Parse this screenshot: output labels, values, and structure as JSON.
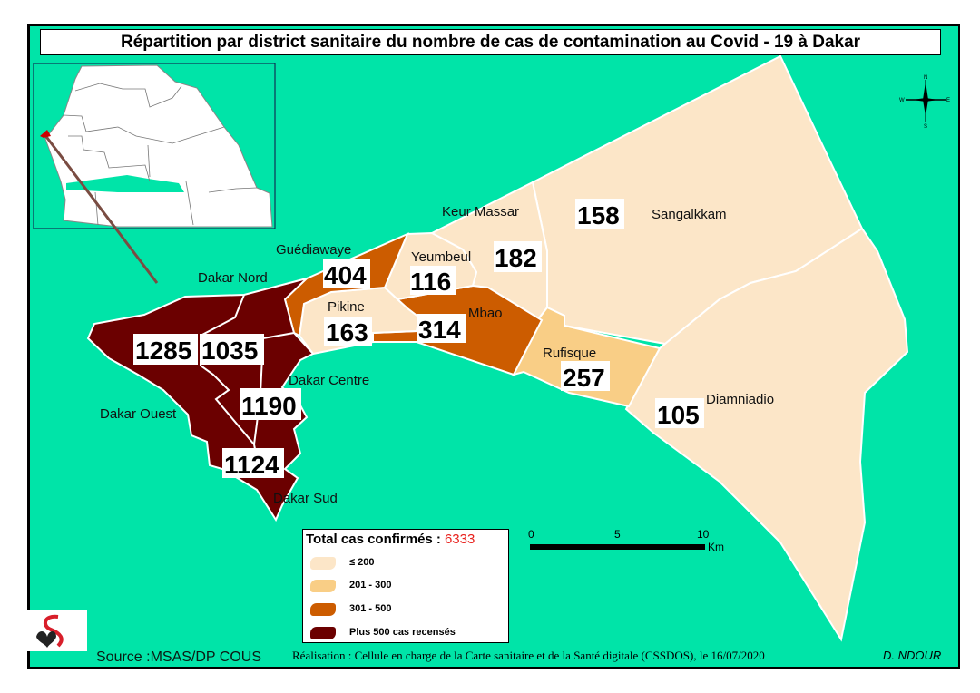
{
  "title": "Répartition par district sanitaire du nombre de cas de contamination au Covid - 19 à Dakar",
  "colors": {
    "sea": "#00E4A8",
    "class_le_200": "#FCE6C8",
    "class_201_300": "#F9CE86",
    "class_301_500": "#CC5C00",
    "class_gt_500": "#6B0000",
    "total_highlight": "#E8201C"
  },
  "districts": [
    {
      "name": "Dakar Ouest",
      "cases": "1285",
      "class": "Plus 500 cas recensés"
    },
    {
      "name": "Dakar Nord",
      "cases": "1035",
      "class": "Plus 500 cas recensés"
    },
    {
      "name": "Dakar Centre",
      "cases": "1190",
      "class": "Plus 500 cas recensés"
    },
    {
      "name": "Dakar Sud",
      "cases": "1124",
      "class": "Plus 500 cas recensés"
    },
    {
      "name": "Guédiawaye",
      "cases": "404",
      "class": "301 - 500"
    },
    {
      "name": "Pikine",
      "cases": "163",
      "class": "≤ 200"
    },
    {
      "name": "Yeumbeul",
      "cases": "116",
      "class": "≤ 200"
    },
    {
      "name": "Keur Massar",
      "cases": "182",
      "class": "≤ 200"
    },
    {
      "name": "Mbao",
      "cases": "314",
      "class": "301 - 500"
    },
    {
      "name": "Sangalkkam",
      "cases": "158",
      "class": "≤ 200"
    },
    {
      "name": "Rufisque",
      "cases": "257",
      "class": "201 - 300"
    },
    {
      "name": "Diamniadio",
      "cases": "105",
      "class": "≤ 200"
    }
  ],
  "legend": {
    "total_label": "Total cas confirmés :",
    "total_value": "6333",
    "items": [
      {
        "label": "≤ 200"
      },
      {
        "label": "201 - 300"
      },
      {
        "label": "301 - 500"
      },
      {
        "label": "Plus 500 cas recensés"
      }
    ]
  },
  "scale_bar": {
    "ticks": [
      "0",
      "5",
      "10"
    ],
    "unit": "Km"
  },
  "compass": {
    "n": "N",
    "s": "S",
    "e": "E",
    "w": "W"
  },
  "inset": {
    "icon": "senegal-locator-map"
  },
  "logo": {
    "icon": "msas-logo"
  },
  "footer": {
    "source": "Source :MSAS/DP COUS",
    "credit": "Réalisation : Cellule en charge  de la Carte sanitaire et de la Santé digitale  (CSSDOS), le 16/07/2020",
    "author": "D. NDOUR"
  }
}
